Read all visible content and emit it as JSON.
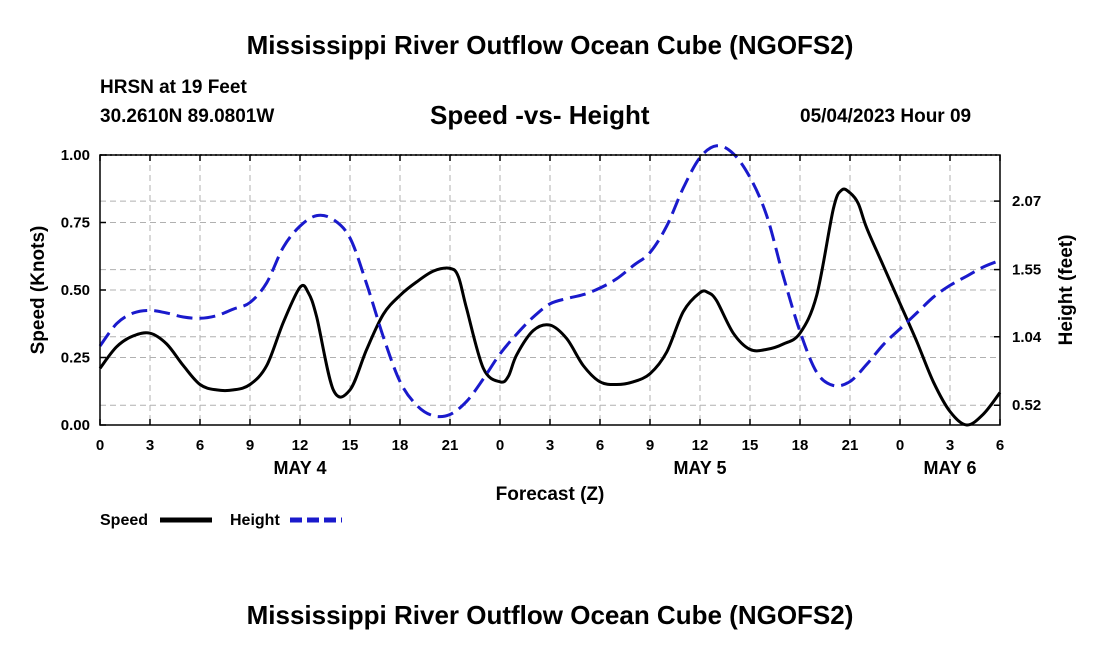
{
  "header": {
    "title": "Mississippi River Outflow Ocean Cube (NGOFS2)",
    "station": "HRSN at 19 Feet",
    "coords": "30.2610N  89.0801W",
    "subtitle": "Speed -vs- Height",
    "date": "05/04/2023 Hour 09"
  },
  "footer": {
    "title": "Mississippi River Outflow Ocean Cube (NGOFS2)"
  },
  "colors": {
    "speed": "#000000",
    "height": "#1a1acc",
    "grid": "#b0b0b0"
  },
  "chart_data": {
    "type": "line",
    "title": "Speed -vs- Height",
    "xlabel": "Forecast (Z)",
    "ylabel": "Speed (Knots)",
    "ylabel_right": "Height (feet)",
    "xlim": [
      0,
      54
    ],
    "ylim": [
      0,
      1.0
    ],
    "y2lim": [
      0.37,
      2.42
    ],
    "x_ticks": [
      0,
      3,
      6,
      9,
      12,
      15,
      18,
      21,
      24,
      27,
      30,
      33,
      36,
      39,
      42,
      45,
      48,
      51,
      54
    ],
    "x_tick_labels": [
      "0",
      "3",
      "6",
      "9",
      "12",
      "15",
      "18",
      "21",
      "0",
      "3",
      "6",
      "9",
      "12",
      "15",
      "18",
      "21",
      "0",
      "3",
      "6"
    ],
    "y_ticks": [
      0,
      0.25,
      0.5,
      0.75,
      1.0
    ],
    "y_tick_labels": [
      "0.00",
      "0.25",
      "0.50",
      "0.75",
      "1.00"
    ],
    "y2_ticks": [
      0.52,
      1.04,
      1.55,
      2.07
    ],
    "y2_tick_labels": [
      "0.52",
      "1.04",
      "1.55",
      "2.07"
    ],
    "day_labels": [
      {
        "x": 12,
        "label": "MAY 4"
      },
      {
        "x": 36,
        "label": "MAY 5"
      },
      {
        "x": 51,
        "label": "MAY 6"
      }
    ],
    "grid": true,
    "legend": {
      "placement": "bottom-left",
      "items": [
        {
          "label": "Speed",
          "style": "solid"
        },
        {
          "label": "Height",
          "style": "dashed"
        }
      ]
    },
    "series": [
      {
        "name": "Speed",
        "axis": "left",
        "style": "solid",
        "x": [
          0,
          1,
          2,
          3,
          4,
          5,
          6,
          7,
          8,
          9,
          10,
          11,
          12,
          12.5,
          13,
          14,
          15,
          16,
          17,
          18,
          19,
          20,
          21,
          21.5,
          22,
          23,
          24,
          24.5,
          25,
          26,
          27,
          28,
          29,
          30,
          31,
          32,
          33,
          34,
          35,
          36,
          36.5,
          37,
          38,
          39,
          40,
          41,
          42,
          43,
          44,
          44.5,
          45,
          45.5,
          46,
          47,
          48,
          49,
          50,
          51,
          52,
          53,
          54
        ],
        "values": [
          0.21,
          0.29,
          0.33,
          0.34,
          0.3,
          0.22,
          0.15,
          0.13,
          0.13,
          0.15,
          0.22,
          0.38,
          0.51,
          0.49,
          0.4,
          0.13,
          0.13,
          0.28,
          0.41,
          0.48,
          0.53,
          0.57,
          0.58,
          0.55,
          0.43,
          0.21,
          0.16,
          0.18,
          0.26,
          0.35,
          0.37,
          0.32,
          0.22,
          0.16,
          0.15,
          0.16,
          0.19,
          0.27,
          0.42,
          0.49,
          0.49,
          0.46,
          0.34,
          0.28,
          0.28,
          0.3,
          0.34,
          0.48,
          0.8,
          0.87,
          0.86,
          0.82,
          0.73,
          0.59,
          0.45,
          0.31,
          0.16,
          0.05,
          0.0,
          0.04,
          0.12
        ]
      },
      {
        "name": "Height",
        "axis": "right",
        "style": "dashed",
        "x": [
          0,
          1,
          2,
          3,
          4,
          5,
          6,
          7,
          8,
          9,
          10,
          11,
          12,
          13,
          14,
          15,
          16,
          17,
          18,
          19,
          20,
          21,
          22,
          23,
          24,
          25,
          26,
          27,
          28,
          29,
          30,
          31,
          32,
          33,
          34,
          35,
          36,
          37,
          38,
          39,
          40,
          41,
          42,
          43,
          44,
          45,
          46,
          47,
          48,
          49,
          50,
          51,
          52,
          53,
          54
        ],
        "values": [
          0.97,
          1.14,
          1.22,
          1.24,
          1.22,
          1.19,
          1.18,
          1.2,
          1.25,
          1.3,
          1.45,
          1.72,
          1.88,
          1.96,
          1.93,
          1.79,
          1.44,
          1.04,
          0.7,
          0.52,
          0.44,
          0.45,
          0.55,
          0.72,
          0.91,
          1.06,
          1.19,
          1.29,
          1.33,
          1.36,
          1.41,
          1.48,
          1.58,
          1.68,
          1.88,
          2.17,
          2.4,
          2.49,
          2.43,
          2.25,
          1.96,
          1.5,
          1.08,
          0.77,
          0.67,
          0.7,
          0.83,
          0.98,
          1.1,
          1.22,
          1.34,
          1.43,
          1.5,
          1.57,
          1.62
        ]
      }
    ]
  }
}
